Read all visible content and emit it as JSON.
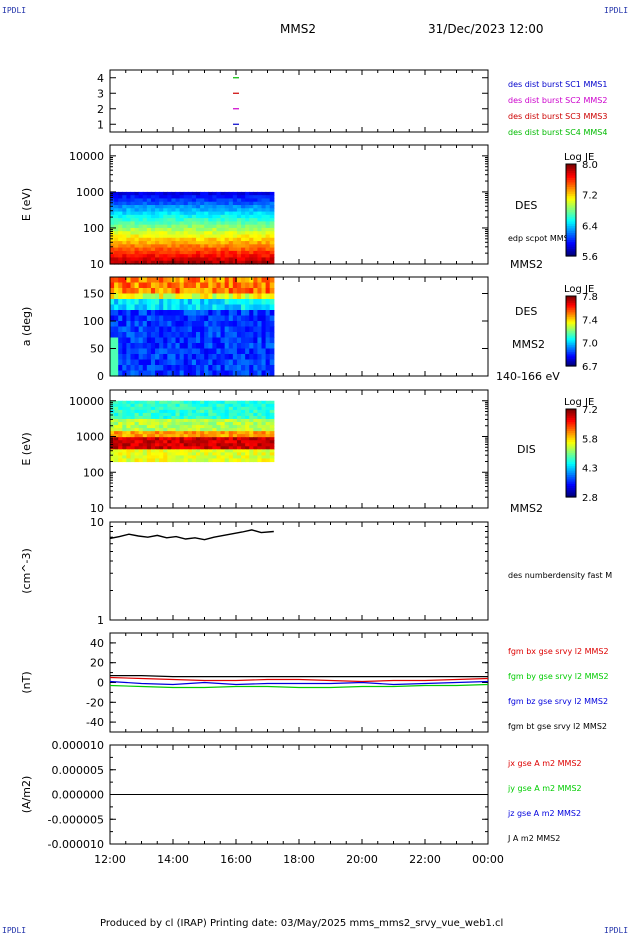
{
  "header": {
    "corner_label": "IPDLI",
    "spacecraft": "MMS2",
    "datetime": "31/Dec/2023 12:00"
  },
  "footer": {
    "text": "Produced by cl (IRAP)   Printing date: 03/May/2025   mms_mms2_srvy_vue_web1.cl"
  },
  "colors": {
    "mms1": "#0000cc",
    "mms2": "#cc00cc",
    "mms3": "#cc0000",
    "mms4": "#00bb00",
    "bx": "#dd0000",
    "by": "#00cc00",
    "bz": "#0000dd",
    "bt": "#000000"
  },
  "chart_data": [
    {
      "type": "scatter",
      "panel": "burst",
      "yticks": [
        "1",
        "2",
        "3",
        "4"
      ],
      "ylim": [
        0.5,
        4.5
      ],
      "x_hours": [
        16.0,
        16.0,
        16.0,
        16.0
      ],
      "y": [
        1,
        2,
        3,
        4
      ],
      "legend": [
        {
          "text": "des dist burst SC1 MMS1",
          "color": "#0000cc"
        },
        {
          "text": "des dist burst SC2 MMS2",
          "color": "#cc00cc"
        },
        {
          "text": "des dist burst SC3 MMS3",
          "color": "#cc0000"
        },
        {
          "text": "des dist burst SC4 MMS4",
          "color": "#00bb00"
        }
      ]
    },
    {
      "type": "heatmap",
      "panel": "des_energy",
      "ylabel": "E (eV)",
      "yscale": "log",
      "ylim": [
        10,
        20000
      ],
      "yticks": [
        "10",
        "100",
        "1000",
        "10000"
      ],
      "x_range_hours": [
        12.0,
        17.2
      ],
      "y_range": [
        10,
        1000
      ],
      "right_label": "DES",
      "right_sub": "edp scpot MMS2",
      "right_bottom": "MMS2",
      "colorbar": {
        "title": "Log JE",
        "min": 5.6,
        "max": 8.0,
        "ticks": [
          "8.0",
          "7.2",
          "6.4",
          "5.6"
        ]
      }
    },
    {
      "type": "heatmap",
      "panel": "des_pitch",
      "ylabel": "a (deg)",
      "ylim": [
        0,
        180
      ],
      "yticks": [
        "0",
        "50",
        "100",
        "150"
      ],
      "x_range_hours": [
        12.0,
        17.2
      ],
      "right_label": "DES",
      "right_sub": "MMS2",
      "right_bottom": "140-166 eV",
      "colorbar": {
        "title": "Log JE",
        "min": 6.7,
        "max": 7.8,
        "ticks": [
          "7.8",
          "7.4",
          "7.0",
          "6.7"
        ]
      }
    },
    {
      "type": "heatmap",
      "panel": "dis_energy",
      "ylabel": "E (eV)",
      "yscale": "log",
      "ylim": [
        10,
        20000
      ],
      "yticks": [
        "10",
        "100",
        "1000",
        "10000"
      ],
      "x_range_hours": [
        12.0,
        17.2
      ],
      "y_range": [
        200,
        10000
      ],
      "right_label": "DIS",
      "right_bottom": "MMS2",
      "colorbar": {
        "title": "Log JE",
        "min": 2.8,
        "max": 7.2,
        "ticks": [
          "7.2",
          "5.8",
          "4.3",
          "2.8"
        ]
      }
    },
    {
      "type": "line",
      "panel": "density",
      "ylabel": "(cm^-3)",
      "yscale": "log",
      "ylim": [
        1,
        10
      ],
      "yticks": [
        "1",
        "10"
      ],
      "x_hours": [
        12.0,
        12.3,
        12.6,
        12.9,
        13.2,
        13.5,
        13.8,
        14.1,
        14.4,
        14.7,
        15.0,
        15.3,
        15.6,
        15.9,
        16.2,
        16.5,
        16.8,
        17.2
      ],
      "y": [
        6.8,
        7.1,
        7.5,
        7.2,
        7.0,
        7.3,
        6.9,
        7.1,
        6.7,
        6.9,
        6.6,
        7.0,
        7.3,
        7.6,
        7.9,
        8.3,
        7.8,
        8.0
      ],
      "right_label": "des numberdensity fast M"
    },
    {
      "type": "line",
      "panel": "bfield",
      "ylabel": "(nT)",
      "ylim": [
        -50,
        50
      ],
      "yticks": [
        "-40",
        "-20",
        "0",
        "20",
        "40"
      ],
      "x_hours": [
        12,
        13,
        14,
        15,
        16,
        17,
        18,
        19,
        20,
        21,
        22,
        23,
        24
      ],
      "series": [
        {
          "name": "fgm bx gse srvy l2 MMS2",
          "color": "#dd0000",
          "values": [
            5,
            4,
            3,
            2,
            2,
            3,
            3,
            2,
            1,
            2,
            2,
            3,
            4
          ]
        },
        {
          "name": "fgm by gse srvy l2 MMS2",
          "color": "#00cc00",
          "values": [
            -3,
            -4,
            -5,
            -5,
            -4,
            -4,
            -5,
            -5,
            -4,
            -4,
            -3,
            -3,
            -2
          ]
        },
        {
          "name": "fgm bz gse srvy l2 MMS2",
          "color": "#0000dd",
          "values": [
            1,
            -1,
            -2,
            0,
            -2,
            -1,
            -1,
            -1,
            0,
            -2,
            -1,
            0,
            1
          ]
        },
        {
          "name": "fgm bt gse srvy l2 MMS2",
          "color": "#000000",
          "values": [
            7,
            7,
            6,
            6,
            6,
            6,
            6,
            6,
            6,
            6,
            6,
            6,
            6
          ]
        }
      ]
    },
    {
      "type": "line",
      "panel": "current",
      "ylabel": "(A/m2)",
      "ylim": [
        -1e-05,
        1e-05
      ],
      "yticks": [
        "-0.000010",
        "-0.000005",
        "0.000000",
        "0.000005",
        "0.000010"
      ],
      "x_hours": [
        12.0,
        24.0
      ],
      "series": [
        {
          "name": "jx gse A m2 MMS2",
          "color": "#dd0000",
          "values": [
            0,
            0
          ]
        },
        {
          "name": "jy gse A m2 MMS2",
          "color": "#00cc00",
          "values": [
            0,
            0
          ]
        },
        {
          "name": "jz gse A m2 MMS2",
          "color": "#0000dd",
          "values": [
            0,
            0
          ]
        },
        {
          "name": "J A m2 MMS2",
          "color": "#000000",
          "values": [
            0,
            0
          ]
        }
      ],
      "xticks": [
        "12:00",
        "14:00",
        "16:00",
        "18:00",
        "20:00",
        "22:00",
        "00:00"
      ]
    }
  ]
}
